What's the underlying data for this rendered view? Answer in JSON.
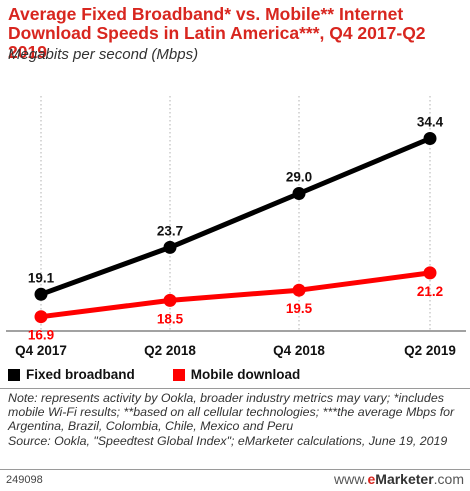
{
  "chart_data": {
    "type": "line",
    "title": "Average Fixed Broadband* vs. Mobile** Internet Download Speeds in Latin America***, Q4 2017-Q2 2019",
    "subtitle": "Megabits per second (Mbps)",
    "categories": [
      "Q4 2017",
      "Q2 2018",
      "Q4 2018",
      "Q2 2019"
    ],
    "series": [
      {
        "name": "Fixed broadband",
        "values": [
          19.1,
          23.7,
          29.0,
          34.4
        ],
        "labels": [
          "19.1",
          "23.7",
          "29.0",
          "34.4"
        ],
        "color": "#000000"
      },
      {
        "name": "Mobile download",
        "values": [
          16.9,
          18.5,
          19.5,
          21.2
        ],
        "labels": [
          "16.9",
          "18.5",
          "19.5",
          "21.2"
        ],
        "color": "#ff0000"
      }
    ],
    "ylim": [
      15,
      37
    ],
    "grid": false,
    "legend_position": "bottom-left"
  },
  "note": "Note: represents activity by Ookla, broader industry metrics may vary; *includes mobile Wi-Fi results; **based on all cellular technologies; ***the average Mbps for Argentina, Brazil, Colombia, Chile, Mexico and Peru",
  "source": "Source: Ookla, \"Speedtest Global Index\"; eMarketer calculations, June 19, 2019",
  "chart_id": "249098",
  "brand": {
    "prefix": "www.",
    "e": "e",
    "name": "Marketer",
    "suffix": ".com"
  },
  "colors": {
    "title": "#d8261f",
    "fixed": "#000000",
    "mobile": "#ff0000"
  }
}
